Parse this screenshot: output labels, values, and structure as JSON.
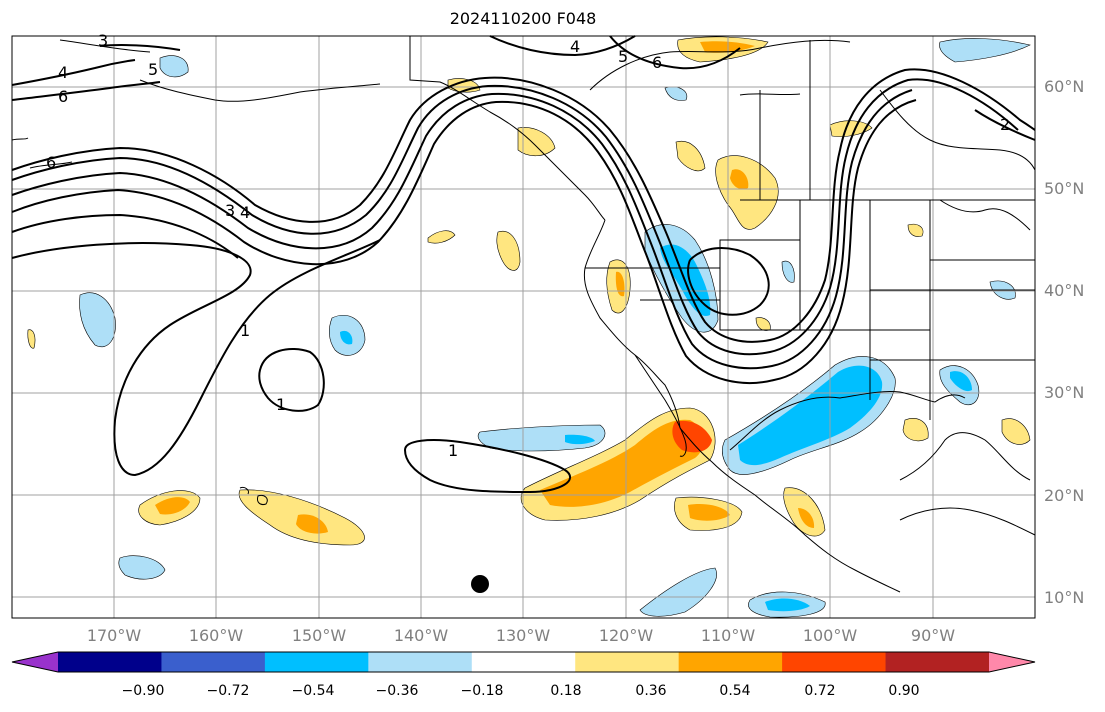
{
  "title": "2024110200 F048",
  "lat_labels": [
    "60°N",
    "50°N",
    "40°N",
    "30°N",
    "20°N",
    "10°N"
  ],
  "lon_labels": [
    "170°W",
    "160°W",
    "150°W",
    "140°W",
    "130°W",
    "120°W",
    "110°W",
    "100°W",
    "90°W"
  ],
  "colorbar": {
    "tick_labels": [
      "−0.90",
      "−0.72",
      "−0.54",
      "−0.36",
      "−0.18",
      "0.18",
      "0.36",
      "0.54",
      "0.72",
      "0.90"
    ],
    "colors": [
      "#9932cc",
      "#00008b",
      "#3a5fcd",
      "#00bfff",
      "#aedff7",
      "#ffffff",
      "#ffe680",
      "#ffa500",
      "#ff4500",
      "#b22222",
      "#ff88aa"
    ]
  },
  "contour_labels": [
    "3",
    "4",
    "5",
    "6",
    "6",
    "4",
    "5",
    "6",
    "3",
    "4",
    "1",
    "1",
    "1",
    "2"
  ],
  "marker": "black-dot"
}
